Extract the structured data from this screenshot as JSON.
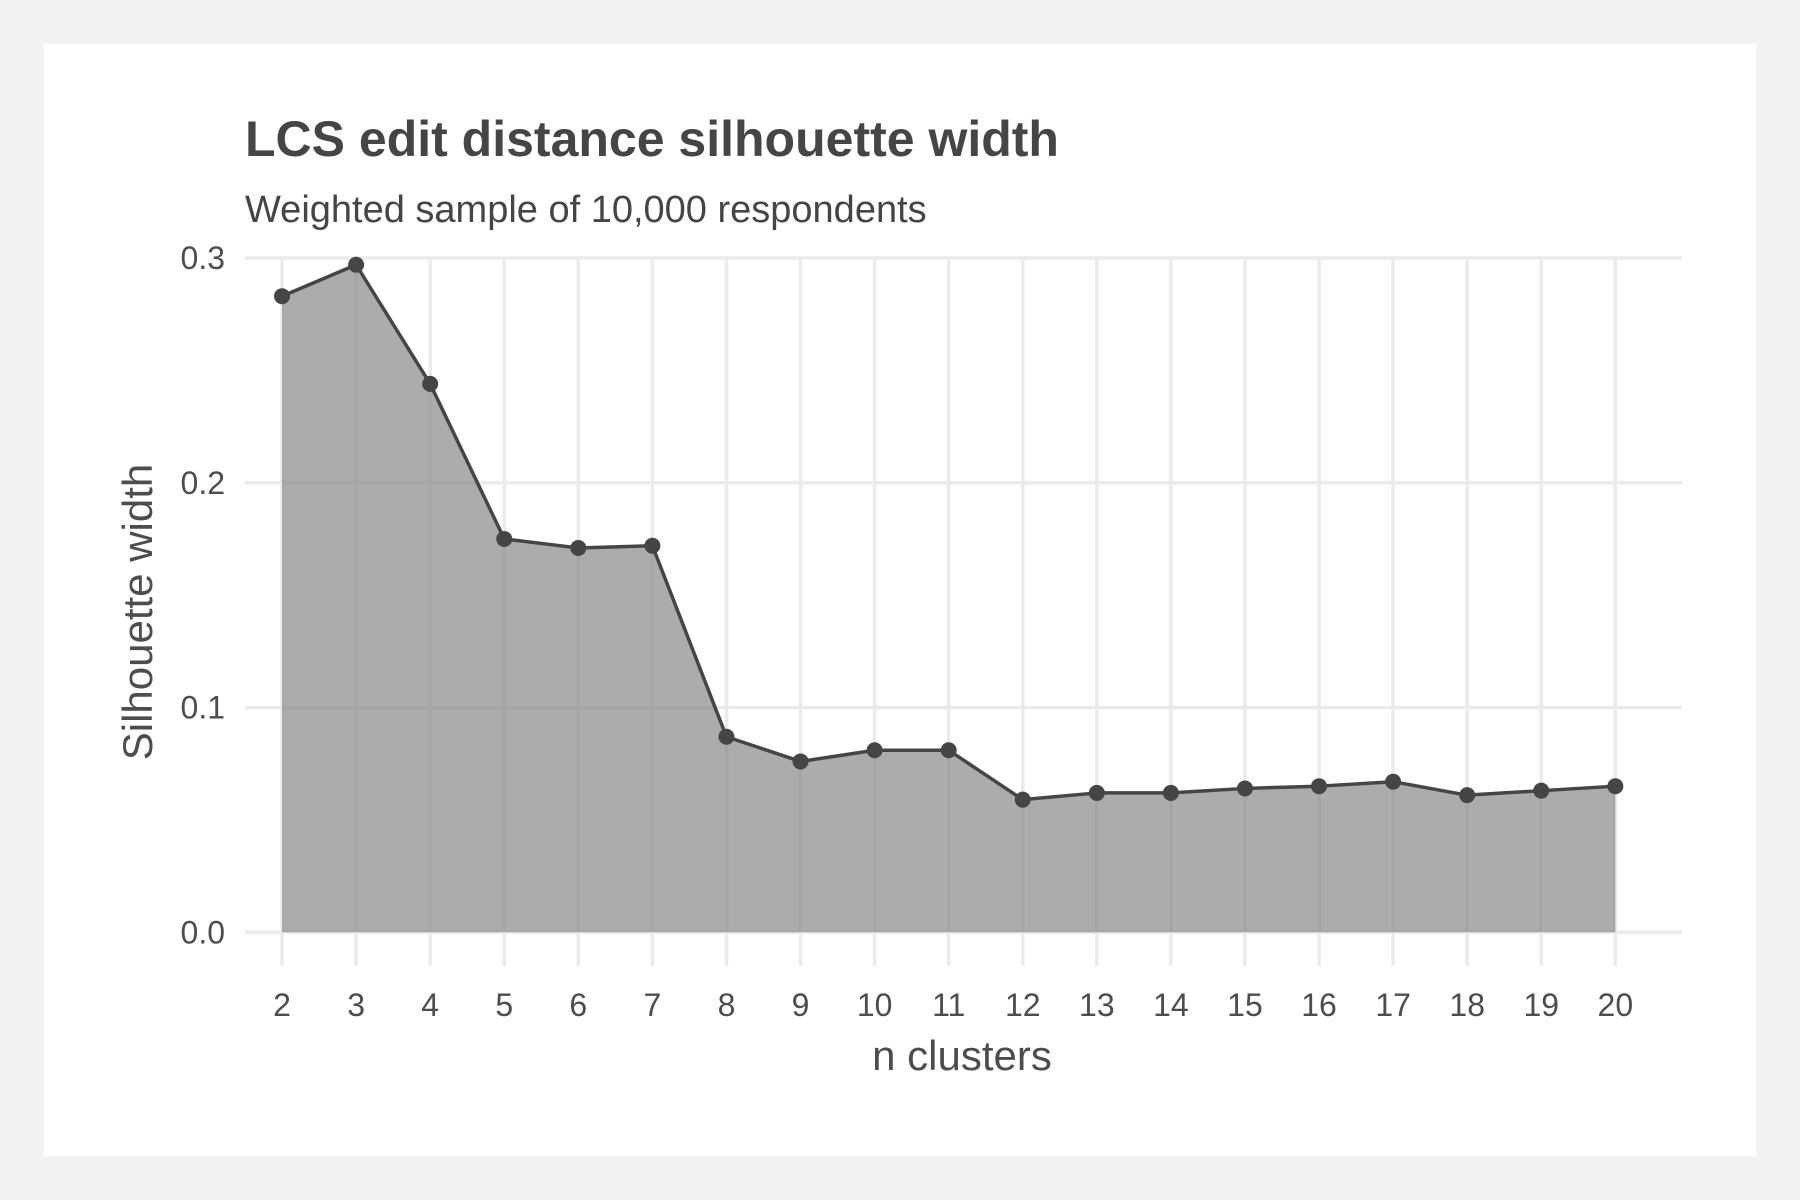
{
  "chart_data": {
    "type": "area",
    "title": "LCS edit distance silhouette width",
    "subtitle": "Weighted sample of 10,000 respondents",
    "xlabel": "n clusters",
    "ylabel": "Silhouette width",
    "x": [
      2,
      3,
      4,
      5,
      6,
      7,
      8,
      9,
      10,
      11,
      12,
      13,
      14,
      15,
      16,
      17,
      18,
      19,
      20
    ],
    "values": [
      0.283,
      0.297,
      0.244,
      0.175,
      0.171,
      0.172,
      0.087,
      0.076,
      0.081,
      0.081,
      0.059,
      0.062,
      0.062,
      0.064,
      0.065,
      0.067,
      0.061,
      0.063,
      0.065
    ],
    "xlim": [
      1.5,
      20.9
    ],
    "ylim": [
      -0.015,
      0.3
    ],
    "yticks": [
      0.0,
      0.1,
      0.2,
      0.3
    ],
    "ytick_labels": [
      "0.0",
      "0.1",
      "0.2",
      "0.3"
    ],
    "xtick_labels": [
      "2",
      "3",
      "4",
      "5",
      "6",
      "7",
      "8",
      "9",
      "10",
      "11",
      "12",
      "13",
      "14",
      "15",
      "16",
      "17",
      "18",
      "19",
      "20"
    ],
    "grid": true,
    "legend": "none",
    "colors": {
      "area_fill": "#7f7f7f",
      "line": "#454545",
      "grid": "#ebebeb",
      "panel_background": "#ffffff",
      "outer_background": "#f2f2f2"
    }
  }
}
